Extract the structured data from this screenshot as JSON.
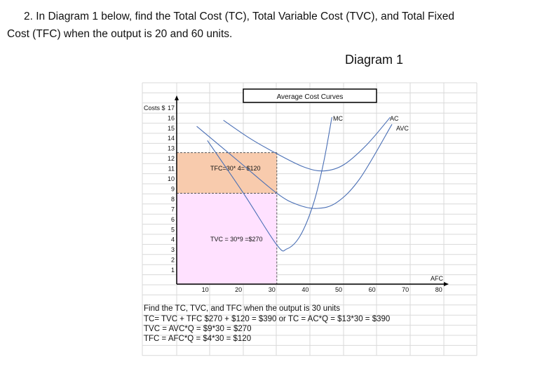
{
  "question": {
    "line1": "2. In Diagram 1 below, find the Total Cost (TC), Total Variable Cost (TVC), and Total Fixed",
    "line2": "Cost (TFC) when the output is 20 and 60 units."
  },
  "diagram_label": "Diagram 1",
  "chart_data": {
    "type": "line",
    "title": "Average Cost Curves",
    "ylabel": "Costs $",
    "xlabel": "AFC",
    "x_ticks": [
      10,
      20,
      30,
      40,
      50,
      60,
      70,
      80
    ],
    "y_ticks": [
      1,
      2,
      3,
      4,
      5,
      6,
      7,
      8,
      9,
      10,
      11,
      12,
      13,
      14,
      15,
      16,
      17
    ],
    "xlim": [
      0,
      80
    ],
    "ylim": [
      0,
      17
    ],
    "grid": true,
    "line_color": "#4a6fb5",
    "series": [
      {
        "name": "AC",
        "points": [
          [
            14,
            16.2
          ],
          [
            22,
            14.4
          ],
          [
            30,
            12.9
          ],
          [
            38,
            11.6
          ],
          [
            44,
            11.2
          ],
          [
            50,
            11.8
          ],
          [
            57,
            13.8
          ],
          [
            64,
            16.5
          ]
        ]
      },
      {
        "name": "AVC",
        "points": [
          [
            6,
            15.6
          ],
          [
            18,
            12.3
          ],
          [
            30,
            9
          ],
          [
            36,
            7.9
          ],
          [
            42,
            7.5
          ],
          [
            48,
            8.1
          ],
          [
            55,
            10.5
          ],
          [
            64.5,
            15.8
          ]
        ]
      },
      {
        "name": "MC",
        "points": [
          [
            9.2,
            14.2
          ],
          [
            20,
            9
          ],
          [
            30,
            3.9
          ],
          [
            33,
            3.5
          ],
          [
            37,
            4.8
          ],
          [
            41,
            8
          ],
          [
            44,
            12
          ],
          [
            46.5,
            16.5
          ]
        ]
      }
    ],
    "regions": [
      {
        "label": "TFC=30* 4= $120",
        "x": [
          0,
          30
        ],
        "y": [
          9,
          13
        ],
        "color": "#f8cbad"
      },
      {
        "label": "TVC = 30*9 =$270",
        "x": [
          0,
          30
        ],
        "y": [
          0,
          9
        ],
        "color": "#ffe1ff"
      }
    ]
  },
  "answers": [
    "Find the TC, TVC, and TFC when the output is 30 units",
    "TC= TVC + TFC $270 + $120 = $390   or TC = AC*Q = $13*30 = $390",
    "TVC = AVC*Q = $9*30 = $270",
    "TFC = AFC*Q = $4*30 = $120"
  ]
}
